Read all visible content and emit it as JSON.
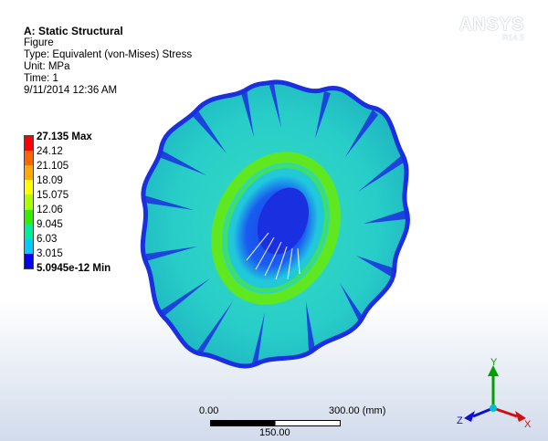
{
  "header": {
    "title": "A: Static Structural",
    "lines": [
      "Figure",
      "Type: Equivalent (von-Mises) Stress",
      "Unit: MPa",
      "Time: 1",
      "9/11/2014 12:36 AM"
    ]
  },
  "logo": {
    "brand": "ANSYS",
    "version": "R14.5"
  },
  "legend": {
    "entries": [
      {
        "label": "27.135 Max",
        "color": "#ff0000",
        "bold": true
      },
      {
        "label": "24.12",
        "color": "#ff6600"
      },
      {
        "label": "21.105",
        "color": "#ffaa00"
      },
      {
        "label": "18.09",
        "color": "#ffff00"
      },
      {
        "label": "15.075",
        "color": "#aaff00"
      },
      {
        "label": "12.06",
        "color": "#33ee00"
      },
      {
        "label": "9.045",
        "color": "#00ee99"
      },
      {
        "label": "6.03",
        "color": "#00ccff"
      },
      {
        "label": "3.015",
        "color": "#0077ff"
      },
      {
        "label": "5.0945e-12 Min",
        "color": "#0000ff",
        "bold": true
      }
    ]
  },
  "scale_bar": {
    "start": "0.00",
    "end": "300.00 (mm)",
    "mid": "150.00"
  },
  "triad": {
    "x": "X",
    "y": "Y",
    "z": "Z"
  },
  "colors": {
    "surface": "#2fd4c6",
    "surface_dark": "#1aa69e",
    "edge_blue": "#1a2fe0",
    "hub_green": "#5fe820"
  }
}
